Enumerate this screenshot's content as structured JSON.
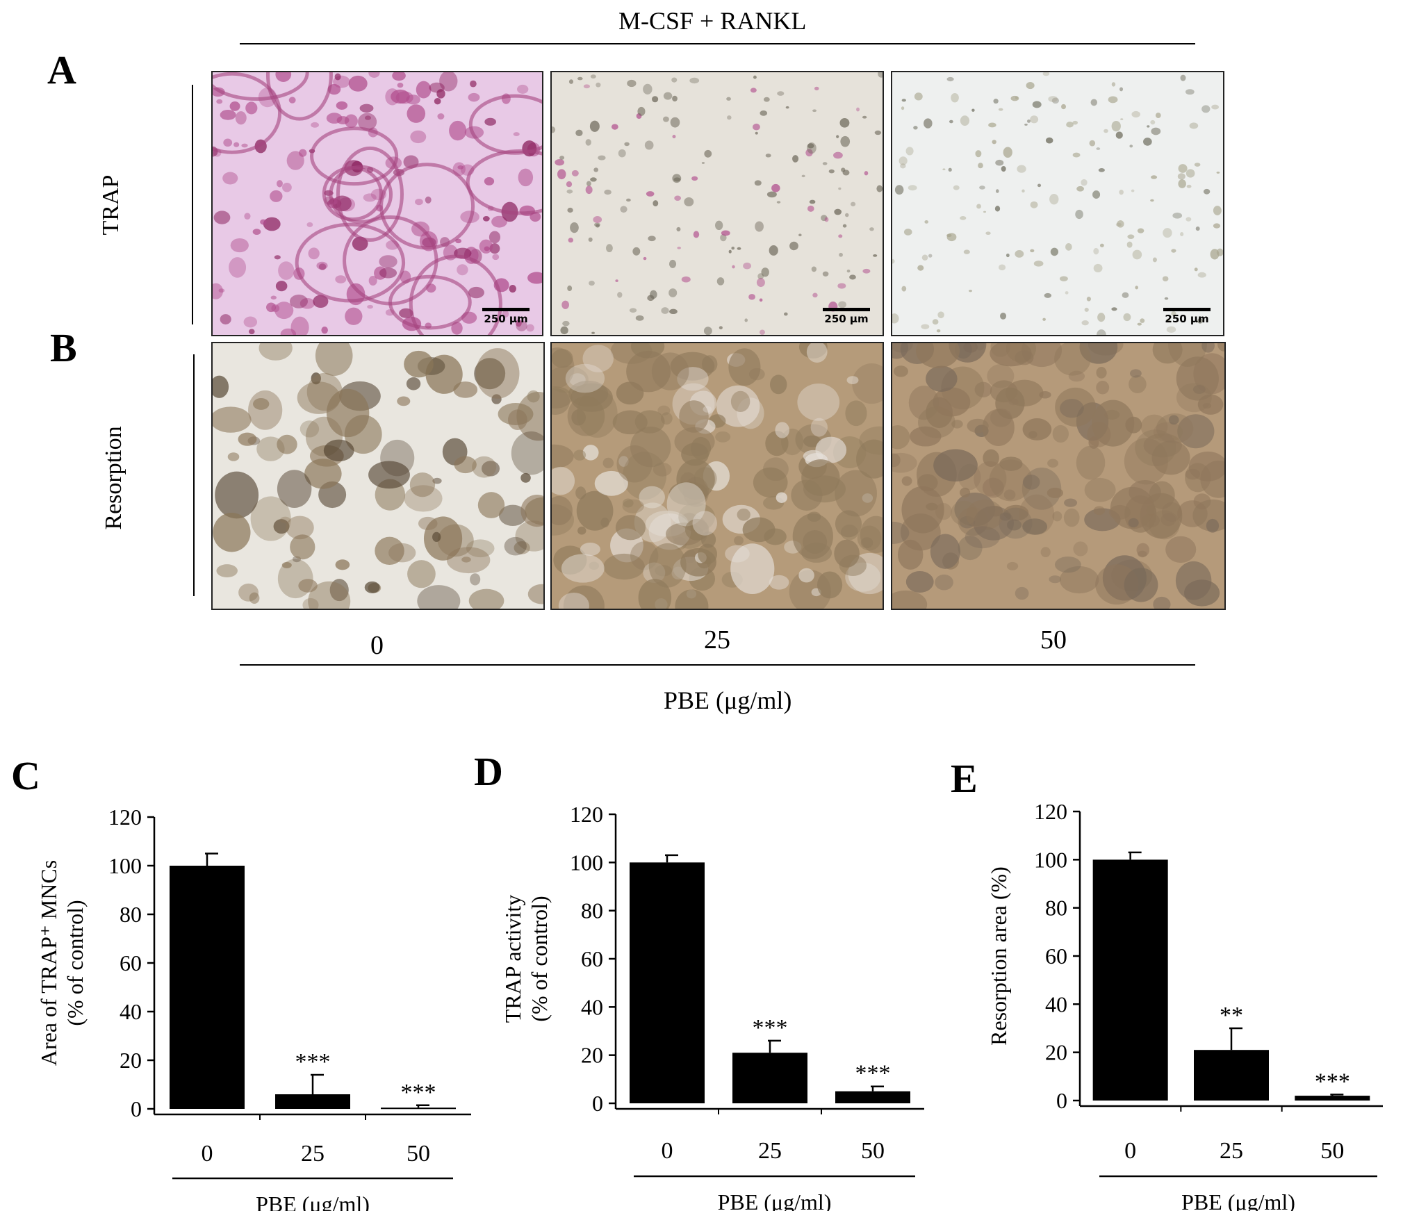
{
  "figure": {
    "top_label": "M-CSF + RANKL",
    "letters": {
      "a": "A",
      "b": "B",
      "c": "C",
      "d": "D",
      "e": "E"
    },
    "row_labels": {
      "trap": "TRAP",
      "resorption": "Resorption"
    },
    "dose_labels": [
      "0",
      "25",
      "50"
    ],
    "x_group_label": "PBE (μg/ml)",
    "scale_bar": "250 μm",
    "micrographs": [
      {
        "row": "TRAP",
        "dose": "0",
        "colors": [
          "#e8c9e6",
          "#b04c8c",
          "#8a1f5c"
        ]
      },
      {
        "row": "TRAP",
        "dose": "25",
        "colors": [
          "#e6e2da",
          "#6f6a5c",
          "#b04c8c"
        ]
      },
      {
        "row": "TRAP",
        "dose": "50",
        "colors": [
          "#eef0ef",
          "#a9a68f",
          "#6b6a5a"
        ]
      },
      {
        "row": "Resorption",
        "dose": "0",
        "colors": [
          "#e9e6df",
          "#8a7558",
          "#4f3f2c"
        ]
      },
      {
        "row": "Resorption",
        "dose": "25",
        "colors": [
          "#b59b7a",
          "#8f7a5c",
          "#e6e0da"
        ]
      },
      {
        "row": "Resorption",
        "dose": "50",
        "colors": [
          "#b59a7a",
          "#8f775c",
          "#7a6a5a"
        ]
      }
    ]
  },
  "chart_data": [
    {
      "panel": "C",
      "type": "bar",
      "categories": [
        "0",
        "25",
        "50"
      ],
      "values": [
        100,
        6,
        0.5
      ],
      "errors": [
        5,
        8,
        1
      ],
      "significance": [
        "",
        "***",
        "***"
      ],
      "ylabel_lines": [
        "Area of TRAP⁺ MNCs",
        "(% of control)"
      ],
      "xlabel": "PBE (μg/ml)",
      "ylim": [
        0,
        120
      ],
      "yticks": [
        0,
        20,
        40,
        60,
        80,
        100,
        120
      ],
      "bar_color": "#000000"
    },
    {
      "panel": "D",
      "type": "bar",
      "categories": [
        "0",
        "25",
        "50"
      ],
      "values": [
        100,
        21,
        5
      ],
      "errors": [
        3,
        5,
        2
      ],
      "significance": [
        "",
        "***",
        "***"
      ],
      "ylabel_lines": [
        "TRAP activity",
        "(% of control)"
      ],
      "xlabel": "PBE (μg/ml)",
      "ylim": [
        0,
        120
      ],
      "yticks": [
        0,
        20,
        40,
        60,
        80,
        100,
        120
      ],
      "bar_color": "#000000"
    },
    {
      "panel": "E",
      "type": "bar",
      "categories": [
        "0",
        "25",
        "50"
      ],
      "values": [
        100,
        21,
        2
      ],
      "errors": [
        3,
        9,
        0.5
      ],
      "significance": [
        "",
        "**",
        "***"
      ],
      "ylabel_lines": [
        "Resorption area (%)"
      ],
      "xlabel": "PBE (μg/ml)",
      "ylim": [
        0,
        120
      ],
      "yticks": [
        0,
        20,
        40,
        60,
        80,
        100,
        120
      ],
      "bar_color": "#000000"
    }
  ]
}
